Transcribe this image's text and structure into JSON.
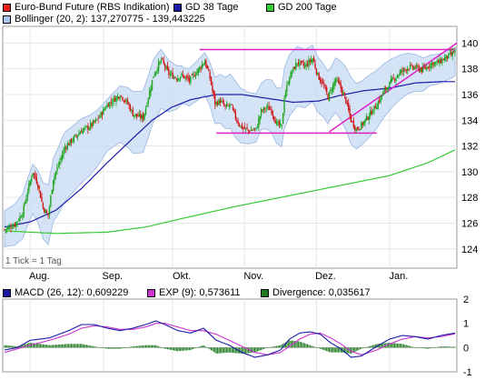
{
  "legend_main": [
    {
      "label": "Euro-Bund Future (RBS Indikation)",
      "color": "#e8211b"
    },
    {
      "label": "GD 38 Tage",
      "color": "#1a1aa6"
    },
    {
      "label": "GD 200 Tage",
      "color": "#33cc33"
    },
    {
      "label": "Bollinger (20, 2): 137,270775 - 139,443225",
      "color": "#a9c6f0"
    }
  ],
  "tick_note": "1 Tick = 1 Tag",
  "legend_macd": [
    {
      "label": "MACD (26, 12): 0,609229",
      "color": "#1a1aa6"
    },
    {
      "label": "EXP (9): 0,573611",
      "color": "#cc33cc"
    },
    {
      "label": "Divergence: 0,035617",
      "color": "#1e7a1e"
    }
  ],
  "chart_data": [
    {
      "type": "line",
      "panel": "price",
      "ylim": [
        122.5,
        141.3
      ],
      "yticks": [
        124,
        126,
        128,
        130,
        132,
        134,
        136,
        138,
        140
      ],
      "month_labels": [
        "Aug.",
        "Sep.",
        "Okt.",
        "Nov.",
        "Dez.",
        "Jan."
      ],
      "month_start_index": [
        20,
        77,
        131,
        187,
        243,
        300
      ],
      "num_days": 352,
      "price_anchors": [
        [
          0,
          125.5
        ],
        [
          8,
          125.9
        ],
        [
          14,
          126.8
        ],
        [
          18,
          128.5
        ],
        [
          22,
          130.0
        ],
        [
          26,
          129.0
        ],
        [
          30,
          127.2
        ],
        [
          34,
          126.6
        ],
        [
          38,
          129.5
        ],
        [
          42,
          130.5
        ],
        [
          47,
          131.9
        ],
        [
          54,
          132.6
        ],
        [
          60,
          133.2
        ],
        [
          66,
          133.5
        ],
        [
          72,
          134.0
        ],
        [
          80,
          135.2
        ],
        [
          90,
          136.0
        ],
        [
          96,
          135.3
        ],
        [
          100,
          134.5
        ],
        [
          104,
          134.3
        ],
        [
          108,
          134.2
        ],
        [
          112,
          135.8
        ],
        [
          116,
          137.5
        ],
        [
          122,
          138.7
        ],
        [
          128,
          137.6
        ],
        [
          134,
          137.3
        ],
        [
          138,
          137.5
        ],
        [
          144,
          137.1
        ],
        [
          150,
          137.8
        ],
        [
          156,
          138.6
        ],
        [
          160,
          137.3
        ],
        [
          164,
          135.3
        ],
        [
          168,
          135.5
        ],
        [
          172,
          135.0
        ],
        [
          176,
          135.2
        ],
        [
          180,
          134.2
        ],
        [
          184,
          133.5
        ],
        [
          190,
          133.2
        ],
        [
          196,
          133.3
        ],
        [
          200,
          134.7
        ],
        [
          204,
          135.0
        ],
        [
          208,
          134.8
        ],
        [
          212,
          133.7
        ],
        [
          216,
          133.5
        ],
        [
          218,
          135.8
        ],
        [
          222,
          137.4
        ],
        [
          228,
          138.5
        ],
        [
          234,
          138.2
        ],
        [
          240,
          138.8
        ],
        [
          244,
          137.5
        ],
        [
          248,
          136.8
        ],
        [
          252,
          135.8
        ],
        [
          258,
          137.2
        ],
        [
          262,
          136.5
        ],
        [
          266,
          135.5
        ],
        [
          270,
          134.0
        ],
        [
          274,
          133.3
        ],
        [
          278,
          133.6
        ],
        [
          284,
          134.4
        ],
        [
          290,
          135.2
        ],
        [
          296,
          136.3
        ],
        [
          302,
          137.1
        ],
        [
          308,
          137.7
        ],
        [
          314,
          138.1
        ],
        [
          320,
          138.1
        ],
        [
          326,
          137.9
        ],
        [
          332,
          138.4
        ],
        [
          338,
          138.5
        ],
        [
          344,
          138.9
        ],
        [
          348,
          139.1
        ],
        [
          351,
          139.4
        ]
      ],
      "sma38_anchors": [
        [
          0,
          125.7
        ],
        [
          20,
          126.1
        ],
        [
          40,
          127.0
        ],
        [
          60,
          128.7
        ],
        [
          80,
          130.7
        ],
        [
          100,
          132.6
        ],
        [
          115,
          134.0
        ],
        [
          130,
          135.0
        ],
        [
          145,
          135.6
        ],
        [
          165,
          136.0
        ],
        [
          185,
          136.0
        ],
        [
          205,
          135.7
        ],
        [
          225,
          135.4
        ],
        [
          245,
          135.5
        ],
        [
          260,
          135.9
        ],
        [
          280,
          136.3
        ],
        [
          300,
          136.5
        ],
        [
          320,
          136.9
        ],
        [
          340,
          137.0
        ],
        [
          351,
          137.0
        ]
      ],
      "sma200_anchors": [
        [
          0,
          125.4
        ],
        [
          40,
          125.2
        ],
        [
          80,
          125.3
        ],
        [
          110,
          125.7
        ],
        [
          140,
          126.4
        ],
        [
          180,
          127.3
        ],
        [
          220,
          128.1
        ],
        [
          260,
          128.9
        ],
        [
          300,
          129.7
        ],
        [
          330,
          130.7
        ],
        [
          351,
          131.7
        ]
      ],
      "bollinger_width_anchors": [
        [
          0,
          1.4
        ],
        [
          25,
          2.0
        ],
        [
          45,
          2.7
        ],
        [
          60,
          2.5
        ],
        [
          80,
          2.0
        ],
        [
          100,
          2.4
        ],
        [
          120,
          2.4
        ],
        [
          140,
          1.4
        ],
        [
          160,
          1.7
        ],
        [
          180,
          2.2
        ],
        [
          200,
          1.8
        ],
        [
          220,
          2.4
        ],
        [
          240,
          2.2
        ],
        [
          255,
          2.0
        ],
        [
          270,
          2.6
        ],
        [
          285,
          2.4
        ],
        [
          305,
          1.8
        ],
        [
          330,
          1.2
        ],
        [
          351,
          1.1
        ]
      ],
      "resistance_level": 139.5,
      "support_level": 133.0,
      "trend_line": [
        [
          253,
          133.1
        ],
        [
          351,
          139.9
        ]
      ]
    },
    {
      "type": "line",
      "panel": "macd",
      "ylim": [
        -1,
        2
      ],
      "yticks": [
        -1,
        0,
        1,
        2
      ],
      "series": [
        {
          "name": "MACD (26, 12)",
          "anchors": [
            [
              0,
              -0.1
            ],
            [
              10,
              0.0
            ],
            [
              20,
              0.3
            ],
            [
              35,
              0.4
            ],
            [
              50,
              0.7
            ],
            [
              60,
              0.95
            ],
            [
              70,
              0.95
            ],
            [
              80,
              0.8
            ],
            [
              90,
              0.7
            ],
            [
              100,
              0.8
            ],
            [
              110,
              0.95
            ],
            [
              118,
              1.1
            ],
            [
              125,
              0.95
            ],
            [
              135,
              0.7
            ],
            [
              145,
              0.6
            ],
            [
              155,
              0.8
            ],
            [
              165,
              0.3
            ],
            [
              175,
              0.1
            ],
            [
              185,
              -0.2
            ],
            [
              195,
              -0.4
            ],
            [
              205,
              -0.3
            ],
            [
              215,
              -0.1
            ],
            [
              222,
              0.35
            ],
            [
              230,
              0.6
            ],
            [
              238,
              0.65
            ],
            [
              246,
              0.55
            ],
            [
              254,
              0.2
            ],
            [
              262,
              -0.05
            ],
            [
              270,
              -0.4
            ],
            [
              278,
              -0.35
            ],
            [
              290,
              0.05
            ],
            [
              300,
              0.35
            ],
            [
              310,
              0.5
            ],
            [
              320,
              0.45
            ],
            [
              330,
              0.35
            ],
            [
              340,
              0.5
            ],
            [
              351,
              0.6
            ]
          ]
        },
        {
          "name": "EXP (9)",
          "anchors": [
            [
              0,
              -0.2
            ],
            [
              10,
              -0.05
            ],
            [
              20,
              0.1
            ],
            [
              35,
              0.3
            ],
            [
              50,
              0.55
            ],
            [
              60,
              0.8
            ],
            [
              70,
              0.9
            ],
            [
              80,
              0.85
            ],
            [
              90,
              0.75
            ],
            [
              100,
              0.75
            ],
            [
              110,
              0.85
            ],
            [
              118,
              1.0
            ],
            [
              125,
              1.0
            ],
            [
              135,
              0.85
            ],
            [
              145,
              0.7
            ],
            [
              155,
              0.7
            ],
            [
              165,
              0.55
            ],
            [
              175,
              0.3
            ],
            [
              185,
              0.05
            ],
            [
              195,
              -0.2
            ],
            [
              205,
              -0.3
            ],
            [
              215,
              -0.2
            ],
            [
              222,
              0.05
            ],
            [
              230,
              0.35
            ],
            [
              238,
              0.55
            ],
            [
              246,
              0.6
            ],
            [
              254,
              0.4
            ],
            [
              262,
              0.15
            ],
            [
              270,
              -0.15
            ],
            [
              278,
              -0.3
            ],
            [
              290,
              -0.1
            ],
            [
              300,
              0.15
            ],
            [
              310,
              0.35
            ],
            [
              320,
              0.45
            ],
            [
              330,
              0.4
            ],
            [
              340,
              0.45
            ],
            [
              351,
              0.57
            ]
          ]
        }
      ]
    }
  ]
}
